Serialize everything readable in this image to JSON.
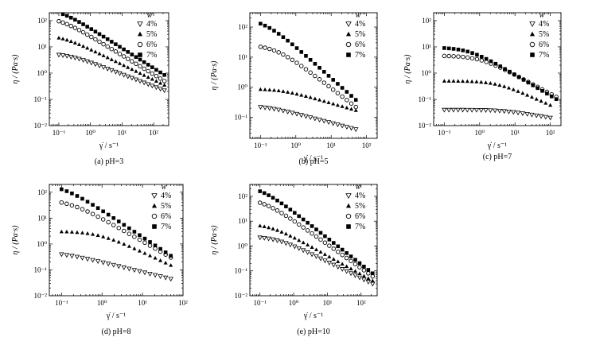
{
  "chart_data": [
    {
      "type": "scatter",
      "caption": "(a) pH=3",
      "xlabel": "γ̇ / s⁻¹",
      "ylabel": "η / (Pa·s)",
      "xscale": "log",
      "yscale": "log",
      "xlim": [
        0.05,
        300
      ],
      "ylim": [
        0.01,
        200
      ],
      "xticks": [
        {
          "e": "-1",
          "v": 0.1
        },
        {
          "e": "0",
          "v": 1
        },
        {
          "e": "1",
          "v": 10
        },
        {
          "e": "2",
          "v": 100
        }
      ],
      "yticks": [
        {
          "e": "-2",
          "v": 0.01
        },
        {
          "e": "-1",
          "v": 0.1
        },
        {
          "e": "0",
          "v": 1
        },
        {
          "e": "1",
          "v": 10
        },
        {
          "e": "2",
          "v": 100
        }
      ],
      "legend_title": "w",
      "legend_position": "top-right",
      "series": [
        {
          "name": "4%",
          "marker": "triangle-down-open",
          "x_range": [
            0.1,
            220
          ],
          "y_start": 5,
          "y_end": 0.22,
          "plateau_end": 0.2
        },
        {
          "name": "5%",
          "marker": "triangle-up-filled",
          "x_range": [
            0.1,
            220
          ],
          "y_start": 22,
          "y_end": 0.35,
          "plateau_end": 0.12
        },
        {
          "name": "6%",
          "marker": "circle-open",
          "x_range": [
            0.1,
            220
          ],
          "y_start": 95,
          "y_end": 0.5,
          "plateau_end": 0.1
        },
        {
          "name": "7%",
          "marker": "square-filled",
          "x_range": [
            0.1,
            220
          ],
          "y_start": 200,
          "y_end": 0.85,
          "plateau_end": 0.1
        }
      ]
    },
    {
      "type": "scatter",
      "caption": "(b) pH=5",
      "xlabel": "γ̇ / s⁻¹",
      "ylabel": "η / (Pa·s)",
      "xscale": "log",
      "yscale": "log",
      "xlim": [
        0.05,
        200
      ],
      "ylim": [
        0.02,
        300
      ],
      "xticks": [
        {
          "e": "-1",
          "v": 0.1
        },
        {
          "e": "0",
          "v": 1
        },
        {
          "e": "1",
          "v": 10
        },
        {
          "e": "2",
          "v": 100
        }
      ],
      "yticks": [
        {
          "e": "-1",
          "v": 0.1
        },
        {
          "e": "0",
          "v": 1
        },
        {
          "e": "1",
          "v": 10
        },
        {
          "e": "2",
          "v": 100
        }
      ],
      "legend_title": "w",
      "legend_position": "top-right",
      "series": [
        {
          "name": "4%",
          "marker": "triangle-down-open",
          "x_range": [
            0.1,
            50
          ],
          "y_start": 0.22,
          "y_end": 0.04,
          "plateau_end": 0.15
        },
        {
          "name": "5%",
          "marker": "triangle-up-filled",
          "x_range": [
            0.1,
            50
          ],
          "y_start": 0.85,
          "y_end": 0.17,
          "plateau_end": 0.4
        },
        {
          "name": "6%",
          "marker": "circle-open",
          "x_range": [
            0.1,
            50
          ],
          "y_start": 22,
          "y_end": 0.22,
          "plateau_end": 0.25
        },
        {
          "name": "7%",
          "marker": "square-filled",
          "x_range": [
            0.1,
            50
          ],
          "y_start": 130,
          "y_end": 0.38,
          "plateau_end": 0.12
        }
      ]
    },
    {
      "type": "scatter",
      "caption": "(c) pH=7",
      "xlabel": "γ̇ / s⁻¹",
      "ylabel": "η / (Pa·s)",
      "xscale": "log",
      "yscale": "log",
      "xlim": [
        0.05,
        200
      ],
      "ylim": [
        0.01,
        200
      ],
      "xticks": [
        {
          "e": "-1",
          "v": 0.1
        },
        {
          "e": "0",
          "v": 1
        },
        {
          "e": "1",
          "v": 10
        },
        {
          "e": "2",
          "v": 100
        }
      ],
      "yticks": [
        {
          "e": "-2",
          "v": 0.01
        },
        {
          "e": "-1",
          "v": 0.1
        },
        {
          "e": "0",
          "v": 1
        },
        {
          "e": "1",
          "v": 10
        },
        {
          "e": "2",
          "v": 100
        }
      ],
      "legend_title": "w",
      "legend_position": "top-right",
      "series": [
        {
          "name": "4%",
          "marker": "triangle-down-open",
          "x_range": [
            0.1,
            100
          ],
          "y_start": 0.04,
          "y_end": 0.02,
          "plateau_end": 5
        },
        {
          "name": "5%",
          "marker": "triangle-up-filled",
          "x_range": [
            0.1,
            100
          ],
          "y_start": 0.5,
          "y_end": 0.06,
          "plateau_end": 3
        },
        {
          "name": "6%",
          "marker": "circle-open",
          "x_range": [
            0.1,
            200
          ],
          "y_start": 4.5,
          "y_end": 0.1,
          "plateau_end": 1
        },
        {
          "name": "7%",
          "marker": "square-filled",
          "x_range": [
            0.1,
            200
          ],
          "y_start": 9,
          "y_end": 0.08,
          "plateau_end": 0.5
        }
      ]
    },
    {
      "type": "scatter",
      "caption": "(d) pH=8",
      "xlabel": "γ̇ / s⁻¹",
      "ylabel": "η / (Pa·s)",
      "xscale": "log",
      "yscale": "log",
      "xlim": [
        0.05,
        100
      ],
      "ylim": [
        0.01,
        200
      ],
      "xticks": [
        {
          "e": "-1",
          "v": 0.1
        },
        {
          "e": "0",
          "v": 1
        },
        {
          "e": "1",
          "v": 10
        },
        {
          "e": "2",
          "v": 100
        }
      ],
      "yticks": [
        {
          "e": "-2",
          "v": 0.01
        },
        {
          "e": "-1",
          "v": 0.1
        },
        {
          "e": "0",
          "v": 1
        },
        {
          "e": "1",
          "v": 10
        },
        {
          "e": "2",
          "v": 100
        }
      ],
      "legend_title": "w",
      "legend_position": "top-right",
      "series": [
        {
          "name": "4%",
          "marker": "triangle-down-open",
          "x_range": [
            0.1,
            50
          ],
          "y_start": 0.4,
          "y_end": 0.045,
          "plateau_end": 0.1
        },
        {
          "name": "5%",
          "marker": "triangle-up-filled",
          "x_range": [
            0.1,
            50
          ],
          "y_start": 3,
          "y_end": 0.15,
          "plateau_end": 0.8
        },
        {
          "name": "6%",
          "marker": "circle-open",
          "x_range": [
            0.1,
            50
          ],
          "y_start": 40,
          "y_end": 0.3,
          "plateau_end": 0.15
        },
        {
          "name": "7%",
          "marker": "square-filled",
          "x_range": [
            0.1,
            50
          ],
          "y_start": 130,
          "y_end": 0.35,
          "plateau_end": 0.1
        }
      ]
    },
    {
      "type": "scatter",
      "caption": "(e) pH=10",
      "xlabel": "γ̇ / s⁻¹",
      "ylabel": "η / (Pa·s)",
      "xscale": "log",
      "yscale": "log",
      "xlim": [
        0.05,
        300
      ],
      "ylim": [
        0.01,
        300
      ],
      "xticks": [
        {
          "e": "-1",
          "v": 0.1
        },
        {
          "e": "0",
          "v": 1
        },
        {
          "e": "1",
          "v": 10
        },
        {
          "e": "2",
          "v": 100
        }
      ],
      "yticks": [
        {
          "e": "-2",
          "v": 0.01
        },
        {
          "e": "-1",
          "v": 0.1
        },
        {
          "e": "0",
          "v": 1
        },
        {
          "e": "1",
          "v": 10
        },
        {
          "e": "2",
          "v": 100
        }
      ],
      "legend_title": "w",
      "legend_position": "top-right",
      "series": [
        {
          "name": "4%",
          "marker": "triangle-down-open",
          "x_range": [
            0.1,
            220
          ],
          "y_start": 2.2,
          "y_end": 0.03,
          "plateau_end": 0.3
        },
        {
          "name": "5%",
          "marker": "triangle-up-filled",
          "x_range": [
            0.1,
            220
          ],
          "y_start": 6.5,
          "y_end": 0.04,
          "plateau_end": 0.2
        },
        {
          "name": "6%",
          "marker": "circle-open",
          "x_range": [
            0.1,
            220
          ],
          "y_start": 55,
          "y_end": 0.06,
          "plateau_end": 0.12
        },
        {
          "name": "7%",
          "marker": "square-filled",
          "x_range": [
            0.1,
            220
          ],
          "y_start": 160,
          "y_end": 0.08,
          "plateau_end": 0.1
        }
      ]
    }
  ]
}
